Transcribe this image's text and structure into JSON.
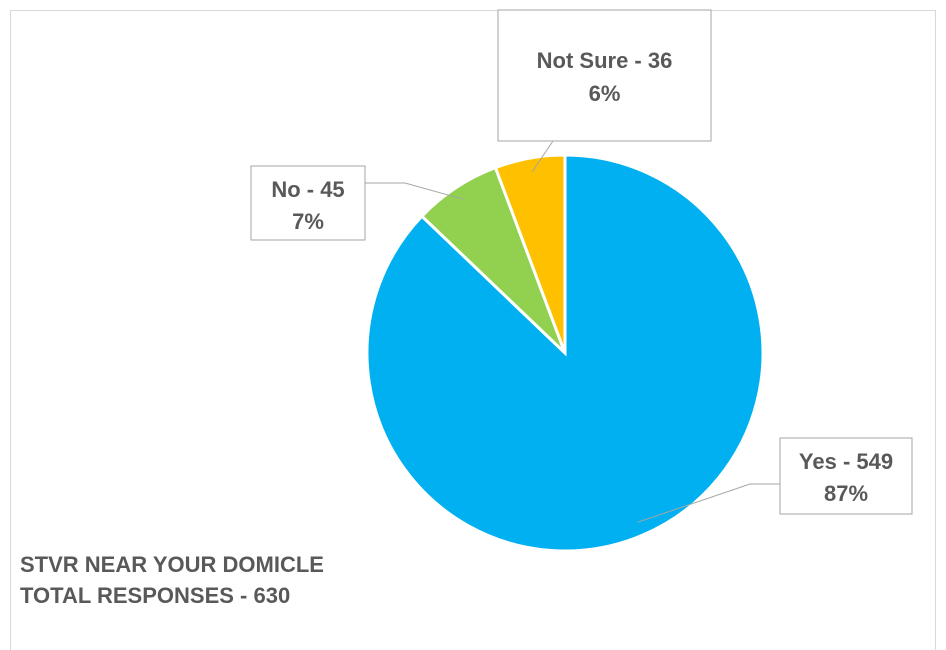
{
  "chart_data": {
    "type": "pie",
    "categories": [
      "Yes",
      "No",
      "Not Sure"
    ],
    "values": [
      549,
      45,
      36
    ],
    "percent_labels": [
      "87%",
      "7%",
      "6%"
    ],
    "data_labels": [
      "Yes - 549",
      "No - 45",
      "Not Sure - 36"
    ],
    "colors": [
      "#00b0f0",
      "#92d050",
      "#ffc000"
    ],
    "start_angle_deg": 0,
    "direction": "clockwise",
    "legend": "none"
  },
  "caption": {
    "line1": "STVR NEAR YOUR DOMICLE",
    "line2": "TOTAL RESPONSES - 630"
  }
}
